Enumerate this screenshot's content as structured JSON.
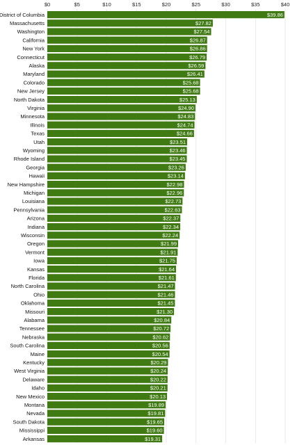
{
  "chart_data": {
    "type": "bar",
    "orientation": "horizontal",
    "title": "",
    "xlabel": "",
    "ylabel": "",
    "xlim": [
      0,
      40
    ],
    "x_ticks": [
      "$0",
      "$5",
      "$10",
      "$15",
      "$20",
      "$25",
      "$30",
      "$35",
      "$40"
    ],
    "tick_values": [
      0,
      5,
      10,
      15,
      20,
      25,
      30,
      35,
      40
    ],
    "grid": true,
    "legend": "none",
    "bar_color": "#3f7a12",
    "categories": [
      "District of Columbia",
      "Massachusetts",
      "Washington",
      "California",
      "New York",
      "Connecticut",
      "Alaska",
      "Maryland",
      "Colorado",
      "New Jersey",
      "North Dakota",
      "Virginia",
      "Minnesota",
      "Illinois",
      "Texas",
      "Utah",
      "Wyoming",
      "Rhode Island",
      "Georgia",
      "Hawaii",
      "New Hampshire",
      "Michigan",
      "Louisiana",
      "Pennsylvania",
      "Arizona",
      "Indiana",
      "Wisconsin",
      "Oregon",
      "Vermont",
      "Iowa",
      "Kansas",
      "Florida",
      "North Carolina",
      "Ohio",
      "Oklahoma",
      "Missouri",
      "Alabama",
      "Tennessee",
      "Nebraska",
      "South Carolina",
      "Maine",
      "Kentucky",
      "West Virginia",
      "Delaware",
      "Idaho",
      "New Mexico",
      "Montana",
      "Nevada",
      "South Dakota",
      "Mississippi",
      "Arkansas"
    ],
    "values": [
      39.86,
      27.82,
      27.54,
      26.87,
      26.86,
      26.79,
      26.59,
      26.41,
      25.68,
      25.68,
      25.13,
      24.9,
      24.83,
      24.74,
      24.66,
      23.51,
      23.46,
      23.45,
      23.26,
      23.14,
      22.98,
      22.96,
      22.73,
      22.63,
      22.37,
      22.34,
      22.24,
      21.99,
      21.91,
      21.75,
      21.64,
      21.61,
      21.47,
      21.46,
      21.45,
      21.3,
      20.84,
      20.72,
      20.62,
      20.56,
      20.54,
      20.29,
      20.24,
      20.22,
      20.21,
      20.13,
      19.89,
      19.81,
      19.65,
      19.6,
      19.31
    ],
    "value_labels": [
      "$39.86",
      "$27.82",
      "$27.54",
      "$26.87",
      "$26.86",
      "$26.79",
      "$26.59",
      "$26.41",
      "$25.68",
      "$25.68",
      "$25.13",
      "$24.90",
      "$24.83",
      "$24.74",
      "$24.66",
      "$23.51",
      "$23.46",
      "$23.45",
      "$23.26",
      "$23.14",
      "$22.98",
      "$22.96",
      "$22.73",
      "$22.63",
      "$22.37",
      "$22.34",
      "$22.24",
      "$21.99",
      "$21.91",
      "$21.75",
      "$21.64",
      "$21.61",
      "$21.47",
      "$21.46",
      "$21.45",
      "$21.30",
      "$20.84",
      "$20.72",
      "$20.62",
      "$20.56",
      "$20.54",
      "$20.29",
      "$20.24",
      "$20.22",
      "$20.21",
      "$20.13",
      "$19.89",
      "$19.81",
      "$19.65",
      "$19.60",
      "$19.31"
    ]
  }
}
